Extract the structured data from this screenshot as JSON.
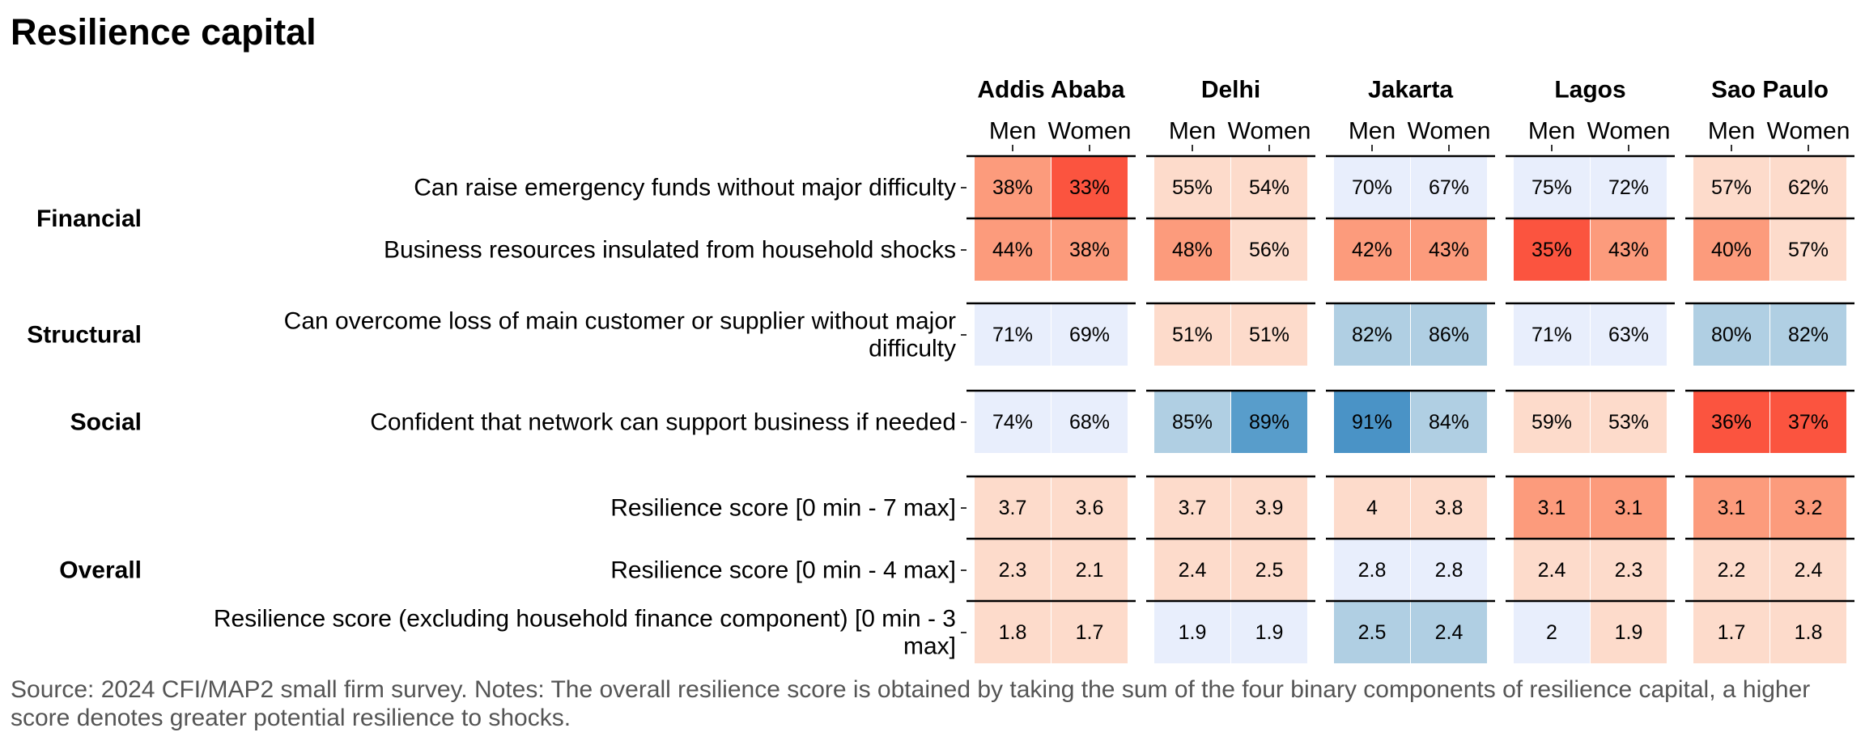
{
  "title": "Resilience capital",
  "note": "Source: 2024 CFI/MAP2 small firm survey. Notes: The overall resilience score is obtained by taking the sum of the four binary components of resilience capital, a higher score denotes greater potential resilience to shocks.",
  "chart_data": {
    "type": "heatmap",
    "title": "Resilience capital",
    "cities": [
      "Addis Ababa",
      "Delhi",
      "Jakarta",
      "Lagos",
      "Sao Paulo"
    ],
    "genders": [
      "Men",
      "Women"
    ],
    "groups": [
      {
        "name": "Financial",
        "rows": [
          0,
          1
        ]
      },
      {
        "name": "Structural",
        "rows": [
          2
        ]
      },
      {
        "name": "Social",
        "rows": [
          3
        ]
      },
      {
        "name": "Overall",
        "rows": [
          4,
          5,
          6
        ]
      }
    ],
    "rows": [
      {
        "label": [
          "Can raise emergency funds without major difficulty"
        ],
        "labels": [
          "38%",
          "33%",
          "55%",
          "54%",
          "70%",
          "67%",
          "75%",
          "72%",
          "57%",
          "62%"
        ],
        "values": [
          38,
          33,
          55,
          54,
          70,
          67,
          75,
          72,
          57,
          62
        ]
      },
      {
        "label": [
          "Business resources insulated from household shocks"
        ],
        "labels": [
          "44%",
          "38%",
          "48%",
          "56%",
          "42%",
          "43%",
          "35%",
          "43%",
          "40%",
          "57%"
        ],
        "values": [
          44,
          38,
          48,
          56,
          42,
          43,
          35,
          43,
          40,
          57
        ]
      },
      {
        "label": [
          "Can overcome loss of main customer or supplier without major",
          "difficulty"
        ],
        "labels": [
          "71%",
          "69%",
          "51%",
          "51%",
          "82%",
          "86%",
          "71%",
          "63%",
          "80%",
          "82%"
        ],
        "values": [
          71,
          69,
          51,
          51,
          82,
          86,
          71,
          63,
          80,
          82
        ]
      },
      {
        "label": [
          "Confident that network can support business if needed"
        ],
        "labels": [
          "74%",
          "68%",
          "85%",
          "89%",
          "91%",
          "84%",
          "59%",
          "53%",
          "36%",
          "37%"
        ],
        "values": [
          74,
          68,
          85,
          89,
          91,
          84,
          59,
          53,
          36,
          37
        ]
      },
      {
        "label": [
          "Resilience score [0 min - 7 max]"
        ],
        "labels": [
          "3.7",
          "3.6",
          "3.7",
          "3.9",
          "4",
          "3.8",
          "3.1",
          "3.1",
          "3.1",
          "3.2"
        ],
        "values": [
          3.7,
          3.6,
          3.7,
          3.9,
          4,
          3.8,
          3.1,
          3.1,
          3.1,
          3.2
        ]
      },
      {
        "label": [
          "Resilience score [0 min - 4 max]"
        ],
        "labels": [
          "2.3",
          "2.1",
          "2.4",
          "2.5",
          "2.8",
          "2.8",
          "2.4",
          "2.3",
          "2.2",
          "2.4"
        ],
        "values": [
          2.3,
          2.1,
          2.4,
          2.5,
          2.8,
          2.8,
          2.4,
          2.3,
          2.2,
          2.4
        ]
      },
      {
        "label": [
          "Resilience score (excluding household finance component) [0 min - 3",
          "max]"
        ],
        "labels": [
          "1.8",
          "1.7",
          "1.9",
          "1.9",
          "2.5",
          "2.4",
          "2",
          "1.9",
          "1.7",
          "1.8"
        ],
        "values": [
          1.8,
          1.7,
          1.9,
          1.9,
          2.5,
          2.4,
          2,
          1.9,
          1.7,
          1.8
        ]
      }
    ],
    "cell_colors": [
      [
        "#fc9b7c",
        "#fb543f",
        "#fddbcb",
        "#fddbcb",
        "#e8eefc",
        "#e8eefc",
        "#e8eefc",
        "#e8eefc",
        "#fddbcb",
        "#fddbcb"
      ],
      [
        "#fc9b7c",
        "#fc9b7c",
        "#fc9b7c",
        "#fddbcb",
        "#fc9b7c",
        "#fc9b7c",
        "#fb543f",
        "#fc9b7c",
        "#fc9b7c",
        "#fddbcb"
      ],
      [
        "#e8eefc",
        "#e8eefc",
        "#fddbcb",
        "#fddbcb",
        "#b0cfe3",
        "#b0cfe3",
        "#e8eefc",
        "#e8eefc",
        "#b0cfe3",
        "#b0cfe3"
      ],
      [
        "#e8eefc",
        "#e8eefc",
        "#b0cfe3",
        "#589dcb",
        "#4a93c6",
        "#b0cfe3",
        "#fddbcb",
        "#fddbcb",
        "#fb543f",
        "#fb543f"
      ],
      [
        "#fddbcb",
        "#fddbcb",
        "#fddbcb",
        "#fddbcb",
        "#fddbcb",
        "#fddbcb",
        "#fc9b7c",
        "#fc9b7c",
        "#fc9b7c",
        "#fc9b7c"
      ],
      [
        "#fddbcb",
        "#fddbcb",
        "#fddbcb",
        "#fddbcb",
        "#e8eefc",
        "#e8eefc",
        "#fddbcb",
        "#fddbcb",
        "#fddbcb",
        "#fddbcb"
      ],
      [
        "#fddbcb",
        "#fddbcb",
        "#e8eefc",
        "#e8eefc",
        "#b0cfe3",
        "#b0cfe3",
        "#e8eefc",
        "#fddbcb",
        "#fddbcb",
        "#fddbcb"
      ]
    ],
    "text_color": "#000000",
    "legend": "none"
  }
}
